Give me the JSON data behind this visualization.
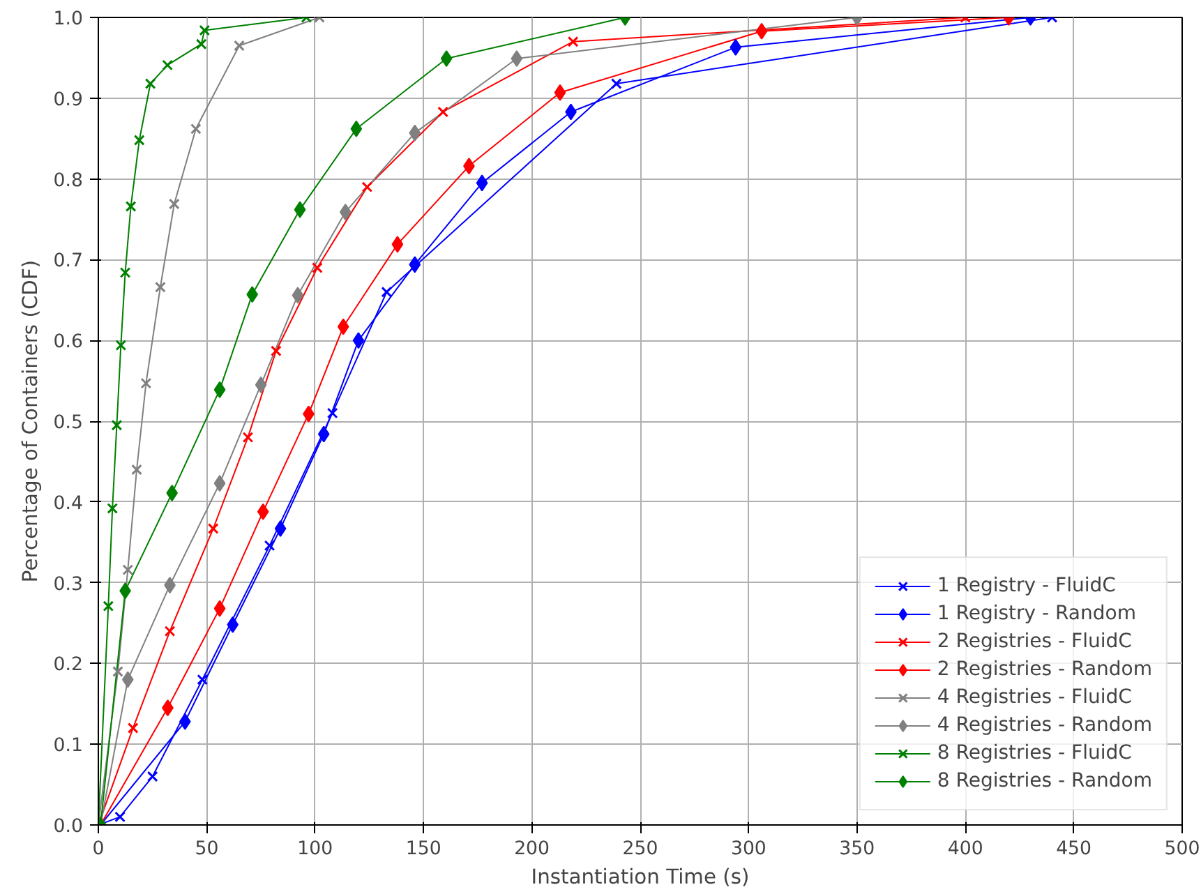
{
  "chart_data": {
    "type": "line",
    "xlabel": "Instantiation Time (s)",
    "ylabel": "Percentage of Containers (CDF)",
    "xlim": [
      0,
      500
    ],
    "ylim": [
      0,
      1.0
    ],
    "xticks": [
      0,
      50,
      100,
      150,
      200,
      250,
      300,
      350,
      400,
      450,
      500
    ],
    "yticks": [
      {
        "value": 0,
        "label": "0.0"
      },
      {
        "value": 0.1,
        "label": "0.1"
      },
      {
        "value": 0.2,
        "label": "0.2"
      },
      {
        "value": 0.3,
        "label": "0.3"
      },
      {
        "value": 0.4,
        "label": "0.4"
      },
      {
        "value": 0.5,
        "label": "0.5"
      },
      {
        "value": 0.6,
        "label": "0.6"
      },
      {
        "value": 0.7,
        "label": "0.7"
      },
      {
        "value": 0.8,
        "label": "0.8"
      },
      {
        "value": 0.9,
        "label": "0.9"
      },
      {
        "value": 1.0,
        "label": "1.0"
      }
    ],
    "grid": true,
    "legend": "bottom right",
    "series": [
      {
        "name": "1 Registry - FluidC",
        "color": "#0000ff",
        "marker": "cross",
        "x": [
          0,
          10,
          25,
          48,
          79,
          108,
          133,
          239,
          440
        ],
        "values": [
          0,
          0.01,
          0.06,
          0.18,
          0.346,
          0.51,
          0.66,
          0.918,
          1.0
        ]
      },
      {
        "name": "1 Registry - Random",
        "color": "#0000ff",
        "marker": "diamond",
        "x": [
          1,
          40,
          62,
          84,
          104,
          120,
          146,
          177,
          218,
          294,
          430
        ],
        "values": [
          0,
          0.128,
          0.248,
          0.367,
          0.484,
          0.6,
          0.694,
          0.795,
          0.883,
          0.963,
          1.0
        ]
      },
      {
        "name": "2 Registries - FluidC",
        "color": "#ff0000",
        "marker": "cross",
        "x": [
          0,
          16,
          33,
          53,
          69,
          82,
          101,
          124,
          159,
          219,
          400
        ],
        "values": [
          0,
          0.12,
          0.24,
          0.367,
          0.48,
          0.587,
          0.69,
          0.79,
          0.883,
          0.97,
          1.0
        ]
      },
      {
        "name": "2 Registries - Random",
        "color": "#ff0000",
        "marker": "diamond",
        "x": [
          1,
          32,
          56,
          76,
          97,
          113,
          138,
          171,
          213,
          306,
          420
        ],
        "values": [
          0,
          0.145,
          0.268,
          0.388,
          0.509,
          0.617,
          0.719,
          0.816,
          0.907,
          0.983,
          1.0
        ]
      },
      {
        "name": "4 Registries - FluidC",
        "color": "#808080",
        "marker": "cross",
        "x": [
          0,
          9,
          13.6,
          17.7,
          22,
          28.6,
          35,
          45,
          65,
          102
        ],
        "values": [
          0,
          0.19,
          0.316,
          0.44,
          0.547,
          0.666,
          0.769,
          0.862,
          0.965,
          1.0
        ]
      },
      {
        "name": "4 Registries - Random",
        "color": "#808080",
        "marker": "diamond",
        "x": [
          1,
          13.6,
          33,
          56,
          75,
          92,
          114,
          146,
          193,
          350
        ],
        "values": [
          0,
          0.18,
          0.297,
          0.423,
          0.545,
          0.656,
          0.759,
          0.857,
          0.949,
          1.0
        ]
      },
      {
        "name": "8 Registries - FluidC",
        "color": "#008000",
        "marker": "cross",
        "x": [
          0,
          4.6,
          6.5,
          8.5,
          10.4,
          12.4,
          15,
          18.9,
          24,
          31.9,
          47.5,
          49,
          96
        ],
        "values": [
          0,
          0.271,
          0.392,
          0.495,
          0.594,
          0.684,
          0.766,
          0.848,
          0.918,
          0.941,
          0.967,
          0.984,
          1.0
        ]
      },
      {
        "name": "8 Registries - Random",
        "color": "#008000",
        "marker": "diamond",
        "x": [
          1,
          12.4,
          34,
          56,
          71,
          93,
          119,
          160.6,
          243
        ],
        "values": [
          0,
          0.29,
          0.411,
          0.539,
          0.657,
          0.762,
          0.862,
          0.949,
          1.0
        ]
      }
    ]
  }
}
